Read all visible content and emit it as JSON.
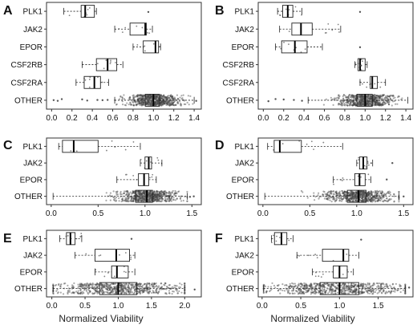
{
  "figure": {
    "xlabel_left": "Normalized Viability",
    "xlabel_right": "Normalized Viability"
  },
  "chart_data": [
    {
      "panel": "A",
      "type": "box",
      "orientation": "horizontal",
      "categories": [
        "PLK1",
        "JAK2",
        "EPOR",
        "CSF2RB",
        "CSF2RA",
        "OTHER"
      ],
      "xlim": [
        -0.05,
        1.47
      ],
      "xticks": [
        0.0,
        0.2,
        0.4,
        0.6,
        0.8,
        1.0,
        1.2,
        1.4
      ],
      "boxes": [
        {
          "category": "PLK1",
          "min": 0.12,
          "q1": 0.29,
          "median": 0.33,
          "q3": 0.42,
          "max": 0.44
        },
        {
          "category": "JAK2",
          "min": 0.62,
          "q1": 0.77,
          "median": 0.92,
          "q3": 0.93,
          "max": 0.99
        },
        {
          "category": "EPOR",
          "min": 0.8,
          "q1": 0.9,
          "median": 1.02,
          "q3": 1.05,
          "max": 1.07
        },
        {
          "category": "CSF2RB",
          "min": 0.3,
          "q1": 0.44,
          "median": 0.55,
          "q3": 0.64,
          "max": 0.7
        },
        {
          "category": "CSF2RA",
          "min": 0.24,
          "q1": 0.32,
          "median": 0.42,
          "q3": 0.48,
          "max": 0.56
        },
        {
          "category": "OTHER",
          "min": 0.62,
          "q1": 0.92,
          "median": 1.0,
          "q3": 1.06,
          "max": 1.4
        }
      ],
      "outliers": [
        {
          "category": "PLK1",
          "values": [
            0.95
          ]
        },
        {
          "category": "OTHER",
          "values": [
            0.02,
            0.06,
            0.1,
            0.3,
            0.35,
            0.45,
            0.5,
            0.55,
            1.42
          ]
        }
      ]
    },
    {
      "panel": "B",
      "type": "box",
      "orientation": "horizontal",
      "categories": [
        "PLK1",
        "JAK2",
        "EPOR",
        "CSF2RB",
        "CSF2RA",
        "OTHER"
      ],
      "xlim": [
        -0.05,
        1.47
      ],
      "xticks": [
        0.0,
        0.2,
        0.4,
        0.6,
        0.8,
        1.0,
        1.2,
        1.4
      ],
      "boxes": [
        {
          "category": "PLK1",
          "min": 0.14,
          "q1": 0.19,
          "median": 0.24,
          "q3": 0.29,
          "max": 0.38
        },
        {
          "category": "JAK2",
          "min": 0.16,
          "q1": 0.28,
          "median": 0.37,
          "q3": 0.48,
          "max": 0.76
        },
        {
          "category": "EPOR",
          "min": 0.12,
          "q1": 0.18,
          "median": 0.31,
          "q3": 0.43,
          "max": 0.58
        },
        {
          "category": "CSF2RB",
          "min": 0.9,
          "q1": 0.93,
          "median": 0.95,
          "q3": 1.0,
          "max": 1.02
        },
        {
          "category": "CSF2RA",
          "min": 0.95,
          "q1": 1.05,
          "median": 1.07,
          "q3": 1.12,
          "max": 1.2
        },
        {
          "category": "OTHER",
          "min": 0.44,
          "q1": 0.92,
          "median": 1.0,
          "q3": 1.07,
          "max": 1.42
        }
      ],
      "outliers": [
        {
          "category": "PLK1",
          "values": [
            0.95
          ]
        },
        {
          "category": "EPOR",
          "values": [
            0.95
          ]
        },
        {
          "category": "CSF2RB",
          "values": [
            0.96
          ]
        },
        {
          "category": "OTHER",
          "values": [
            0.05,
            0.12,
            0.2,
            0.3,
            0.38
          ]
        }
      ]
    },
    {
      "panel": "C",
      "type": "box",
      "orientation": "horizontal",
      "categories": [
        "PLK1",
        "JAK2",
        "EPOR",
        "OTHER"
      ],
      "xlim": [
        -0.05,
        1.6
      ],
      "xticks": [
        0.0,
        0.5,
        1.0,
        1.5
      ],
      "boxes": [
        {
          "category": "PLK1",
          "min": 0.08,
          "q1": 0.12,
          "median": 0.24,
          "q3": 0.5,
          "max": 0.95
        },
        {
          "category": "JAK2",
          "min": 0.95,
          "q1": 1.0,
          "median": 1.04,
          "q3": 1.07,
          "max": 1.18
        },
        {
          "category": "EPOR",
          "min": 0.7,
          "q1": 0.93,
          "median": 0.99,
          "q3": 1.04,
          "max": 1.12
        },
        {
          "category": "OTHER",
          "min": 0.02,
          "q1": 0.9,
          "median": 1.02,
          "q3": 1.08,
          "max": 1.45
        }
      ],
      "outliers": [
        {
          "category": "OTHER",
          "values": [
            1.48,
            1.52
          ]
        }
      ]
    },
    {
      "panel": "D",
      "type": "box",
      "orientation": "horizontal",
      "categories": [
        "PLK1",
        "JAK2",
        "EPOR",
        "OTHER"
      ],
      "xlim": [
        -0.05,
        1.6
      ],
      "xticks": [
        0.0,
        0.5,
        1.0,
        1.5
      ],
      "boxes": [
        {
          "category": "PLK1",
          "min": 0.05,
          "q1": 0.12,
          "median": 0.18,
          "q3": 0.41,
          "max": 0.85
        },
        {
          "category": "JAK2",
          "min": 1.0,
          "q1": 1.03,
          "median": 1.07,
          "q3": 1.11,
          "max": 1.17
        },
        {
          "category": "EPOR",
          "min": 0.75,
          "q1": 0.98,
          "median": 1.03,
          "q3": 1.09,
          "max": 1.15
        },
        {
          "category": "OTHER",
          "min": 0.02,
          "q1": 0.9,
          "median": 1.02,
          "q3": 1.1,
          "max": 1.45
        }
      ],
      "outliers": [
        {
          "category": "JAK2",
          "values": [
            1.38
          ]
        },
        {
          "category": "EPOR",
          "values": [
            1.32
          ]
        },
        {
          "category": "OTHER",
          "values": [
            1.5
          ]
        }
      ]
    },
    {
      "panel": "E",
      "type": "box",
      "orientation": "horizontal",
      "categories": [
        "PLK1",
        "JAK2",
        "EPOR",
        "OTHER"
      ],
      "xlim": [
        -0.08,
        2.25
      ],
      "xticks": [
        0.0,
        0.5,
        1.0,
        1.5,
        2.0
      ],
      "boxes": [
        {
          "category": "PLK1",
          "min": 0.12,
          "q1": 0.22,
          "median": 0.28,
          "q3": 0.35,
          "max": 0.45
        },
        {
          "category": "JAK2",
          "min": 0.35,
          "q1": 0.65,
          "median": 0.97,
          "q3": 1.17,
          "max": 1.25
        },
        {
          "category": "EPOR",
          "min": 0.65,
          "q1": 0.9,
          "median": 0.98,
          "q3": 1.15,
          "max": 1.25
        },
        {
          "category": "OTHER",
          "min": 0.02,
          "q1": 0.72,
          "median": 1.0,
          "q3": 1.28,
          "max": 2.0
        }
      ],
      "outliers": [
        {
          "category": "PLK1",
          "values": [
            1.2
          ]
        },
        {
          "category": "OTHER",
          "values": [
            2.15
          ]
        }
      ]
    },
    {
      "panel": "F",
      "type": "box",
      "orientation": "horizontal",
      "categories": [
        "PLK1",
        "JAK2",
        "EPOR",
        "OTHER"
      ],
      "xlim": [
        -0.05,
        1.95
      ],
      "xticks": [
        0.0,
        0.5,
        1.0,
        1.5
      ],
      "boxes": [
        {
          "category": "PLK1",
          "min": 0.12,
          "q1": 0.16,
          "median": 0.25,
          "q3": 0.32,
          "max": 0.4
        },
        {
          "category": "JAK2",
          "min": 0.45,
          "q1": 0.78,
          "median": 1.05,
          "q3": 1.12,
          "max": 1.25
        },
        {
          "category": "EPOR",
          "min": 0.65,
          "q1": 0.92,
          "median": 1.0,
          "q3": 1.1,
          "max": 1.18
        },
        {
          "category": "OTHER",
          "min": 0.02,
          "q1": 0.75,
          "median": 1.0,
          "q3": 1.25,
          "max": 1.85
        }
      ],
      "outliers": [
        {
          "category": "PLK1",
          "values": [
            1.28
          ]
        },
        {
          "category": "OTHER",
          "values": [
            1.9
          ]
        }
      ]
    }
  ]
}
